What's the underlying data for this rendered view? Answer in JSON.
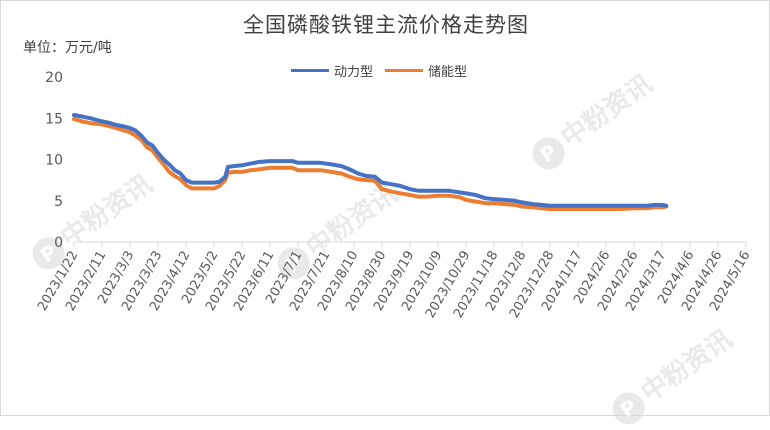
{
  "watermark": {
    "icon": "P",
    "text": "中粉资讯"
  },
  "chart_data": {
    "type": "line",
    "title": "全国磷酸铁锂主流价格走势图",
    "unit_label": "单位：万元/吨",
    "ylim": [
      0,
      20
    ],
    "yticks": [
      0,
      5,
      10,
      15,
      20
    ],
    "xlim": [
      "2023/1/22",
      "2024/5/16"
    ],
    "xticks": [
      "2023/1/22",
      "2023/2/11",
      "2023/3/3",
      "2023/3/23",
      "2023/4/12",
      "2023/5/2",
      "2023/5/22",
      "2023/6/11",
      "2023/7/1",
      "2023/7/21",
      "2023/8/10",
      "2023/8/30",
      "2023/9/19",
      "2023/10/9",
      "2023/10/29",
      "2023/11/18",
      "2023/12/8",
      "2023/12/28",
      "2024/1/17",
      "2024/2/6",
      "2024/2/26",
      "2024/3/17",
      "2024/4/6",
      "2024/4/26",
      "2024/5/16"
    ],
    "grid": false,
    "legend_position": "top",
    "colors": {
      "power": "#4472c4",
      "storage": "#ed7d31"
    },
    "series": [
      {
        "name": "动力型",
        "points": [
          [
            "2023/1/22",
            15.4
          ],
          [
            "2023/1/28",
            15.2
          ],
          [
            "2023/2/3",
            15.0
          ],
          [
            "2023/2/9",
            14.7
          ],
          [
            "2023/2/15",
            14.5
          ],
          [
            "2023/2/21",
            14.2
          ],
          [
            "2023/2/27",
            14.0
          ],
          [
            "2023/3/3",
            13.8
          ],
          [
            "2023/3/7",
            13.5
          ],
          [
            "2023/3/11",
            12.9
          ],
          [
            "2023/3/15",
            12.1
          ],
          [
            "2023/3/19",
            11.7
          ],
          [
            "2023/3/23",
            10.8
          ],
          [
            "2023/3/27",
            10.0
          ],
          [
            "2023/3/31",
            9.4
          ],
          [
            "2023/4/4",
            8.7
          ],
          [
            "2023/4/8",
            8.3
          ],
          [
            "2023/4/12",
            7.5
          ],
          [
            "2023/4/16",
            7.2
          ],
          [
            "2023/4/22",
            7.2
          ],
          [
            "2023/4/28",
            7.2
          ],
          [
            "2023/5/2",
            7.2
          ],
          [
            "2023/5/6",
            7.3
          ],
          [
            "2023/5/10",
            7.9
          ],
          [
            "2023/5/12",
            9.1
          ],
          [
            "2023/5/16",
            9.2
          ],
          [
            "2023/5/22",
            9.3
          ],
          [
            "2023/5/28",
            9.5
          ],
          [
            "2023/6/3",
            9.7
          ],
          [
            "2023/6/11",
            9.8
          ],
          [
            "2023/6/19",
            9.8
          ],
          [
            "2023/6/27",
            9.8
          ],
          [
            "2023/7/1",
            9.6
          ],
          [
            "2023/7/9",
            9.6
          ],
          [
            "2023/7/17",
            9.6
          ],
          [
            "2023/7/25",
            9.4
          ],
          [
            "2023/8/1",
            9.2
          ],
          [
            "2023/8/7",
            8.8
          ],
          [
            "2023/8/13",
            8.3
          ],
          [
            "2023/8/19",
            8.0
          ],
          [
            "2023/8/25",
            7.9
          ],
          [
            "2023/8/30",
            7.2
          ],
          [
            "2023/9/6",
            7.0
          ],
          [
            "2023/9/12",
            6.8
          ],
          [
            "2023/9/19",
            6.4
          ],
          [
            "2023/9/25",
            6.2
          ],
          [
            "2023/10/1",
            6.2
          ],
          [
            "2023/10/9",
            6.2
          ],
          [
            "2023/10/17",
            6.2
          ],
          [
            "2023/10/25",
            6.0
          ],
          [
            "2023/10/29",
            5.9
          ],
          [
            "2023/11/5",
            5.7
          ],
          [
            "2023/11/12",
            5.3
          ],
          [
            "2023/11/18",
            5.2
          ],
          [
            "2023/11/26",
            5.1
          ],
          [
            "2023/12/3",
            5.0
          ],
          [
            "2023/12/8",
            4.8
          ],
          [
            "2023/12/16",
            4.6
          ],
          [
            "2023/12/22",
            4.5
          ],
          [
            "2023/12/28",
            4.4
          ],
          [
            "2024/1/7",
            4.4
          ],
          [
            "2024/1/17",
            4.4
          ],
          [
            "2024/1/27",
            4.4
          ],
          [
            "2024/2/6",
            4.4
          ],
          [
            "2024/2/16",
            4.4
          ],
          [
            "2024/2/26",
            4.4
          ],
          [
            "2024/3/6",
            4.4
          ],
          [
            "2024/3/12",
            4.5
          ],
          [
            "2024/3/17",
            4.5
          ],
          [
            "2024/3/20",
            4.4
          ]
        ]
      },
      {
        "name": "储能型",
        "points": [
          [
            "2023/1/22",
            14.9
          ],
          [
            "2023/1/28",
            14.6
          ],
          [
            "2023/2/3",
            14.4
          ],
          [
            "2023/2/9",
            14.3
          ],
          [
            "2023/2/15",
            14.1
          ],
          [
            "2023/2/21",
            13.8
          ],
          [
            "2023/2/27",
            13.5
          ],
          [
            "2023/3/3",
            13.3
          ],
          [
            "2023/3/7",
            12.9
          ],
          [
            "2023/3/11",
            12.4
          ],
          [
            "2023/3/15",
            11.5
          ],
          [
            "2023/3/19",
            11.1
          ],
          [
            "2023/3/23",
            10.2
          ],
          [
            "2023/3/27",
            9.4
          ],
          [
            "2023/3/31",
            8.5
          ],
          [
            "2023/4/4",
            8.0
          ],
          [
            "2023/4/8",
            7.6
          ],
          [
            "2023/4/12",
            6.9
          ],
          [
            "2023/4/16",
            6.5
          ],
          [
            "2023/4/22",
            6.5
          ],
          [
            "2023/4/28",
            6.5
          ],
          [
            "2023/5/2",
            6.5
          ],
          [
            "2023/5/6",
            6.8
          ],
          [
            "2023/5/10",
            7.5
          ],
          [
            "2023/5/12",
            8.4
          ],
          [
            "2023/5/16",
            8.5
          ],
          [
            "2023/5/22",
            8.5
          ],
          [
            "2023/5/28",
            8.7
          ],
          [
            "2023/6/3",
            8.8
          ],
          [
            "2023/6/11",
            9.0
          ],
          [
            "2023/6/19",
            9.0
          ],
          [
            "2023/6/27",
            9.0
          ],
          [
            "2023/7/1",
            8.7
          ],
          [
            "2023/7/9",
            8.7
          ],
          [
            "2023/7/17",
            8.7
          ],
          [
            "2023/7/25",
            8.5
          ],
          [
            "2023/8/1",
            8.3
          ],
          [
            "2023/8/7",
            7.9
          ],
          [
            "2023/8/13",
            7.6
          ],
          [
            "2023/8/19",
            7.5
          ],
          [
            "2023/8/25",
            7.4
          ],
          [
            "2023/8/30",
            6.4
          ],
          [
            "2023/9/6",
            6.1
          ],
          [
            "2023/9/12",
            5.9
          ],
          [
            "2023/9/19",
            5.7
          ],
          [
            "2023/9/25",
            5.5
          ],
          [
            "2023/10/1",
            5.5
          ],
          [
            "2023/10/9",
            5.6
          ],
          [
            "2023/10/17",
            5.6
          ],
          [
            "2023/10/25",
            5.4
          ],
          [
            "2023/10/29",
            5.1
          ],
          [
            "2023/11/5",
            4.9
          ],
          [
            "2023/11/12",
            4.7
          ],
          [
            "2023/11/18",
            4.7
          ],
          [
            "2023/11/26",
            4.6
          ],
          [
            "2023/12/3",
            4.5
          ],
          [
            "2023/12/8",
            4.3
          ],
          [
            "2023/12/16",
            4.2
          ],
          [
            "2023/12/22",
            4.1
          ],
          [
            "2023/12/28",
            4.0
          ],
          [
            "2024/1/7",
            4.0
          ],
          [
            "2024/1/17",
            4.0
          ],
          [
            "2024/1/27",
            4.0
          ],
          [
            "2024/2/6",
            4.0
          ],
          [
            "2024/2/16",
            4.0
          ],
          [
            "2024/2/26",
            4.1
          ],
          [
            "2024/3/6",
            4.1
          ],
          [
            "2024/3/12",
            4.2
          ],
          [
            "2024/3/17",
            4.2
          ],
          [
            "2024/3/20",
            4.3
          ]
        ]
      }
    ]
  }
}
